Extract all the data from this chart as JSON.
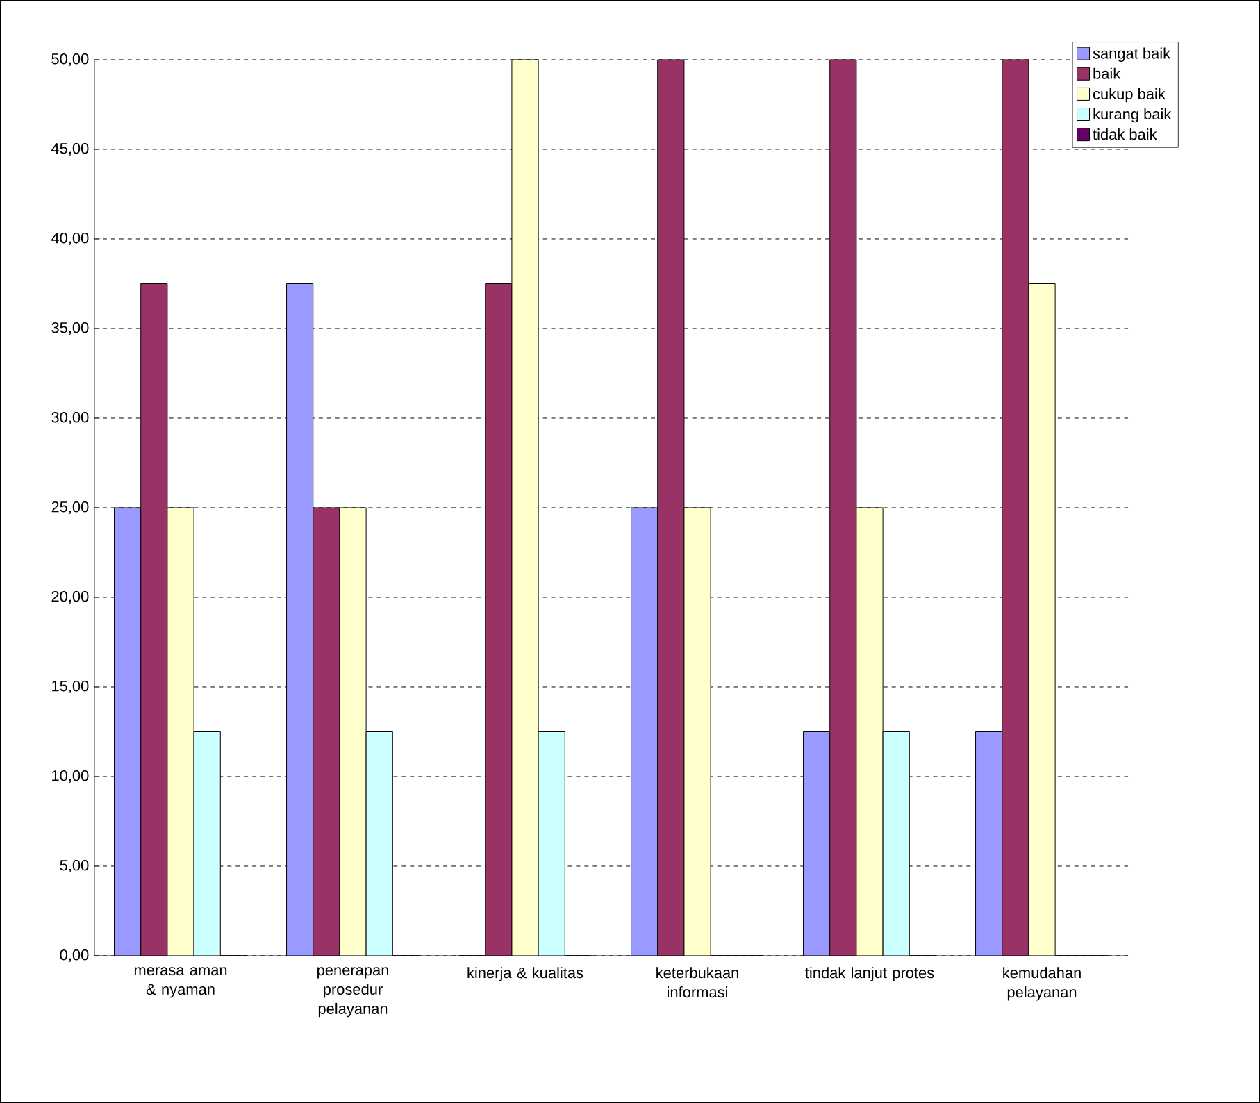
{
  "chart_data": {
    "type": "bar",
    "categories": [
      "merasa aman & nyaman",
      "penerapan prosedur pelayanan",
      "kinerja & kualitas",
      "keterbukaan informasi",
      "tindak lanjut protes",
      "kemudahan pelayanan"
    ],
    "series": [
      {
        "name": "sangat baik",
        "color": "#9999ff",
        "values": [
          25,
          37.5,
          0,
          25,
          12.5,
          12.5
        ]
      },
      {
        "name": "baik",
        "color": "#993366",
        "values": [
          37.5,
          25,
          37.5,
          50,
          50,
          50
        ]
      },
      {
        "name": "cukup baik",
        "color": "#ffffcc",
        "values": [
          25,
          25,
          50,
          25,
          25,
          37.5
        ]
      },
      {
        "name": "kurang baik",
        "color": "#ccffff",
        "values": [
          12.5,
          12.5,
          12.5,
          0,
          12.5,
          0
        ]
      },
      {
        "name": "tidak baik",
        "color": "#660066",
        "values": [
          0,
          0,
          0,
          0,
          0,
          0
        ]
      }
    ],
    "ylim": [
      0,
      50
    ],
    "yticks": [
      {
        "value": 0,
        "label": "0,00"
      },
      {
        "value": 5,
        "label": "5,00"
      },
      {
        "value": 10,
        "label": "10,00"
      },
      {
        "value": 15,
        "label": "15,00"
      },
      {
        "value": 20,
        "label": "20,00"
      },
      {
        "value": 25,
        "label": "25,00"
      },
      {
        "value": 30,
        "label": "30,00"
      },
      {
        "value": 35,
        "label": "35,00"
      },
      {
        "value": 40,
        "label": "40,00"
      },
      {
        "value": 45,
        "label": "45,00"
      },
      {
        "value": 50,
        "label": "50,00"
      }
    ],
    "grid": "y",
    "legend": "top right"
  }
}
